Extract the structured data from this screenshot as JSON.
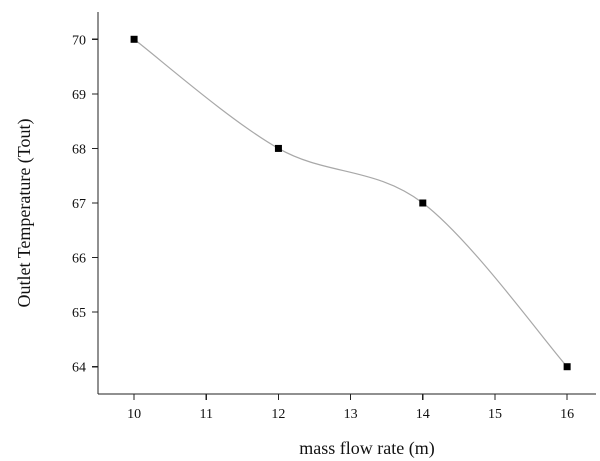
{
  "chart_data": {
    "type": "line",
    "title": "",
    "xlabel": "mass flow rate (m)",
    "ylabel": "Outlet Temperature (Tout)",
    "x": [
      10,
      12,
      14,
      16
    ],
    "series": [
      {
        "values": [
          70,
          68,
          67,
          64
        ]
      }
    ],
    "xlim": [
      9.5,
      16.4
    ],
    "ylim": [
      63.5,
      70.5
    ],
    "x_ticks": [
      "10",
      "11",
      "12",
      "13",
      "14",
      "15",
      "16"
    ],
    "y_ticks": [
      "64",
      "65",
      "66",
      "67",
      "68",
      "69",
      "70"
    ],
    "grid": false,
    "legend": "none",
    "line_color": "#a8a8a8",
    "marker_color": "#000000",
    "marker": "square"
  }
}
